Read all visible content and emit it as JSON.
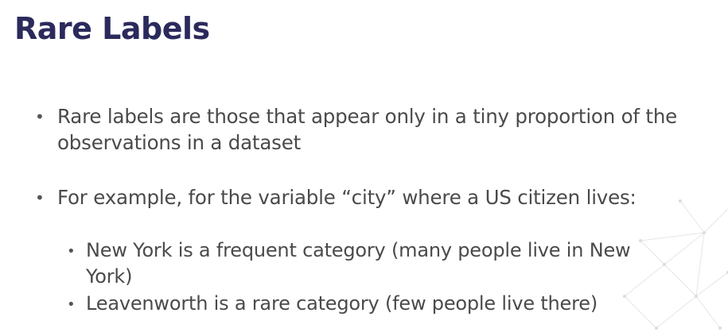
{
  "slide": {
    "title": "Rare Labels",
    "bullets": [
      {
        "text": "Rare labels are those that appear only in a tiny proportion of the observations in a dataset"
      },
      {
        "text": "For example, for the variable “city” where a US citizen lives:",
        "sub": [
          {
            "text": "New York is a frequent category (many people live in New York)"
          },
          {
            "text": "Leavenworth is a rare category (few people live there)"
          }
        ]
      }
    ],
    "bullet_symbol": "•",
    "sub_bullet_symbol": "•"
  },
  "colors": {
    "title": "#2b2a5c",
    "body_text": "#4a4a4a",
    "background": "#ffffff"
  },
  "icons": [
    "network-decoration"
  ]
}
